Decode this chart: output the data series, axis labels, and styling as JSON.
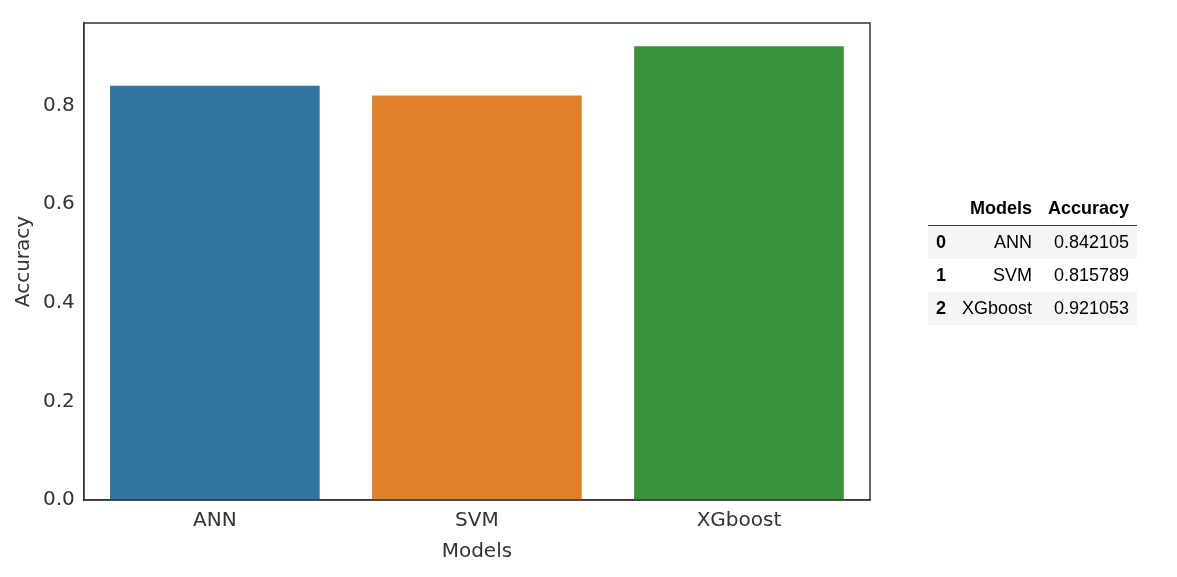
{
  "chart_data": [
    {
      "type": "bar",
      "xlabel": "Models",
      "ylabel": "Accuracy",
      "categories": [
        "ANN",
        "SVM",
        "XGboost"
      ],
      "values": [
        0.84,
        0.82,
        0.92
      ],
      "colors": [
        "#3274a1",
        "#e1812c",
        "#3a923a"
      ],
      "ylim": [
        0,
        0.967
      ],
      "yticks": [
        {
          "value": 0,
          "label": "0.0"
        },
        {
          "value": 0.2,
          "label": "0.2"
        },
        {
          "value": 0.4,
          "label": "0.4"
        },
        {
          "value": 0.6,
          "label": "0.6"
        },
        {
          "value": 0.8,
          "label": "0.8"
        }
      ]
    },
    {
      "type": "other",
      "xlabel": "Models",
      "ylabel": "Accuracy",
      "annotations": [
        "0",
        "ANN",
        "0.842105",
        "1",
        "SVM",
        "0.815789",
        "2",
        "XGboost",
        "0.921053"
      ]
    }
  ]
}
